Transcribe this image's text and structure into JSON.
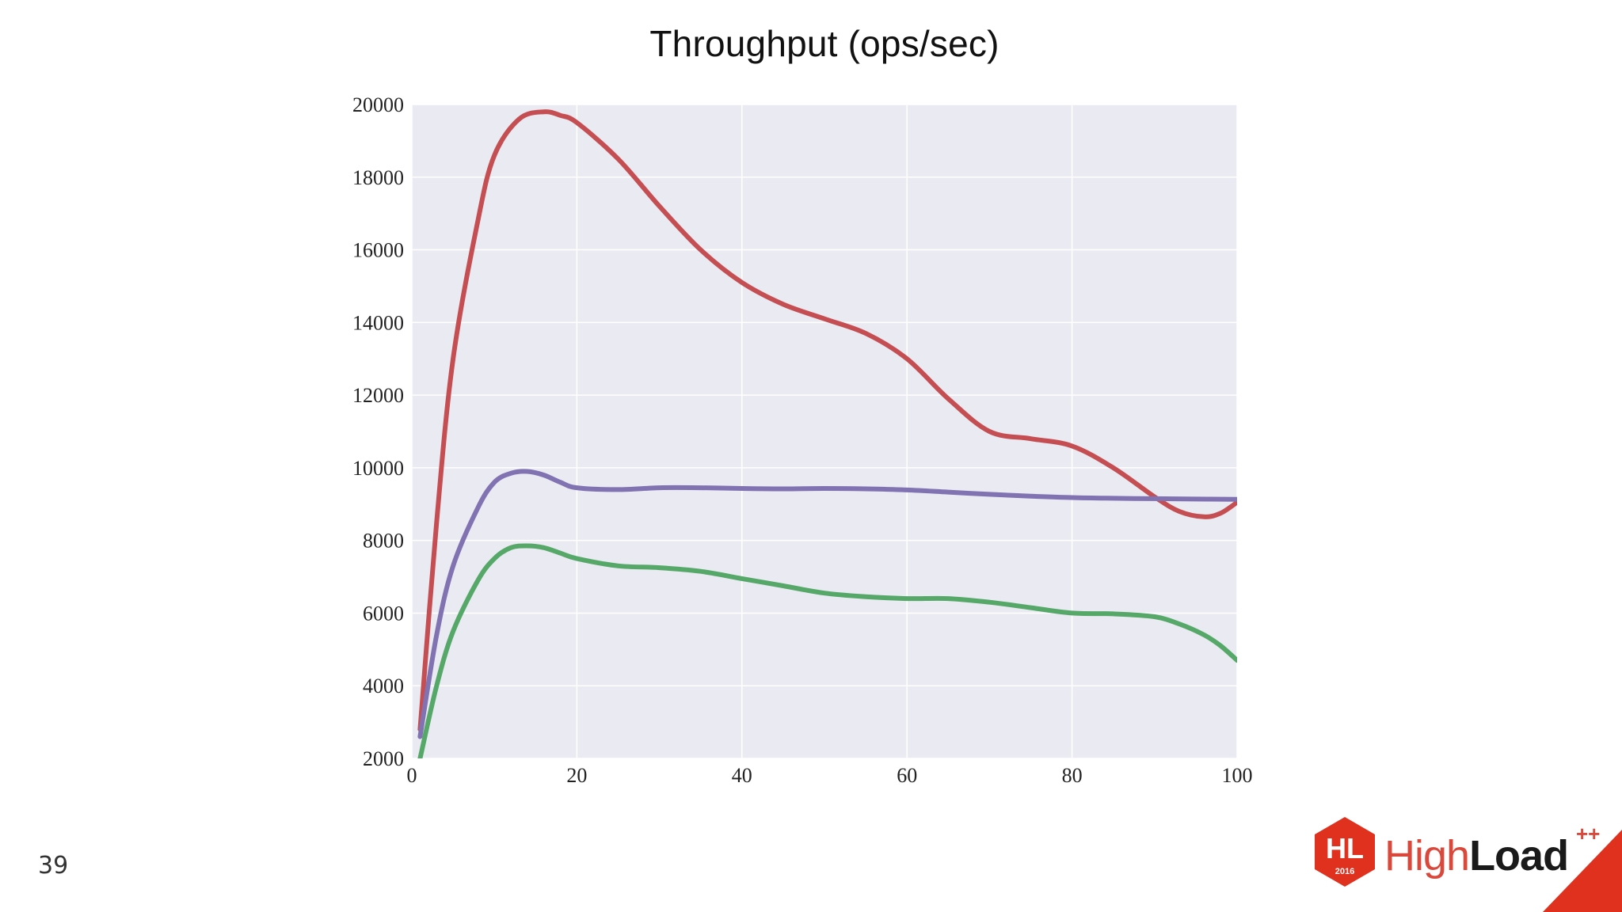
{
  "slide": {
    "page_number": "39",
    "logo": {
      "badge_text": "HL",
      "badge_year": "2016",
      "word_light": "High",
      "word_bold": "Load",
      "plus": "++"
    }
  },
  "colors": {
    "plot_bg": "#eaeaf2",
    "grid": "#ffffff",
    "accent": "#e0301e"
  },
  "chart_data": {
    "type": "line",
    "title": "Throughput (ops/sec)",
    "xlabel": "",
    "ylabel": "",
    "xlim": [
      0,
      100
    ],
    "ylim": [
      2000,
      20000
    ],
    "xticks": [
      0,
      20,
      40,
      60,
      80,
      100
    ],
    "yticks": [
      2000,
      4000,
      6000,
      8000,
      10000,
      12000,
      14000,
      16000,
      18000,
      20000
    ],
    "grid": true,
    "legend": "none",
    "series": [
      {
        "color": "#c44e52",
        "x": [
          1,
          3,
          5,
          8,
          10,
          13,
          16,
          18,
          20,
          25,
          30,
          35,
          40,
          45,
          50,
          55,
          60,
          65,
          70,
          75,
          80,
          85,
          90,
          93,
          96,
          98,
          100
        ],
        "y": [
          2800,
          8500,
          13000,
          16800,
          18600,
          19600,
          19800,
          19700,
          19500,
          18500,
          17200,
          16000,
          15100,
          14500,
          14100,
          13700,
          13000,
          11900,
          11000,
          10800,
          10600,
          10000,
          9200,
          8800,
          8650,
          8750,
          9050
        ]
      },
      {
        "color": "#8172b2",
        "x": [
          1,
          3,
          5,
          8,
          10,
          12,
          14,
          16,
          18,
          20,
          25,
          30,
          35,
          40,
          45,
          50,
          55,
          60,
          65,
          70,
          75,
          80,
          85,
          90,
          95,
          100
        ],
        "y": [
          2600,
          5400,
          7300,
          8900,
          9600,
          9850,
          9900,
          9800,
          9600,
          9450,
          9400,
          9450,
          9450,
          9430,
          9420,
          9430,
          9420,
          9390,
          9330,
          9270,
          9220,
          9180,
          9160,
          9150,
          9140,
          9130
        ]
      },
      {
        "color": "#55a868",
        "x": [
          1,
          3,
          5,
          8,
          10,
          12,
          14,
          16,
          18,
          20,
          25,
          30,
          35,
          40,
          45,
          50,
          55,
          60,
          65,
          70,
          75,
          80,
          85,
          90,
          93,
          96,
          98,
          100
        ],
        "y": [
          2000,
          4000,
          5500,
          6900,
          7500,
          7800,
          7850,
          7800,
          7650,
          7500,
          7300,
          7250,
          7150,
          6950,
          6750,
          6550,
          6450,
          6400,
          6400,
          6300,
          6150,
          6000,
          5980,
          5900,
          5700,
          5400,
          5100,
          4700
        ]
      }
    ]
  }
}
